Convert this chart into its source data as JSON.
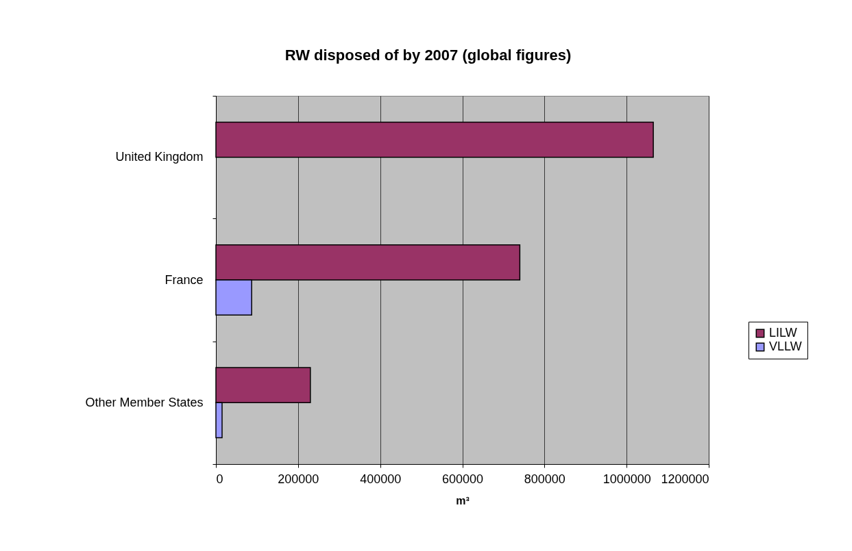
{
  "chart_data": {
    "type": "bar",
    "orientation": "horizontal",
    "title": "RW disposed of by 2007 (global figures)",
    "xlabel": "m³",
    "categories": [
      "United Kingdom",
      "France",
      "Other Member States"
    ],
    "series": [
      {
        "name": "LILW",
        "color": "#993366",
        "values": [
          1065000,
          740000,
          230000
        ]
      },
      {
        "name": "VLLW",
        "color": "#9999ff",
        "values": [
          null,
          87000,
          15000
        ]
      }
    ],
    "xlim": [
      0,
      1200000
    ],
    "xticks": [
      0,
      200000,
      400000,
      600000,
      800000,
      1000000,
      1200000
    ],
    "grid": "x",
    "legend": "right"
  }
}
